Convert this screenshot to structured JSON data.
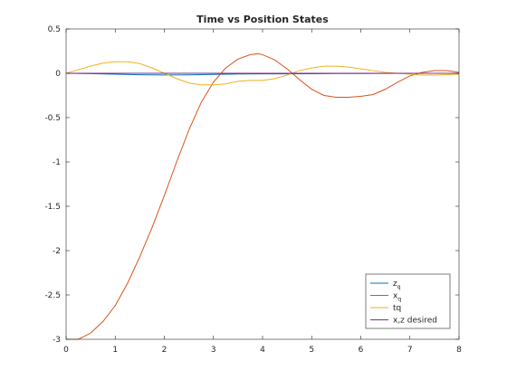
{
  "chart_data": {
    "type": "line",
    "title": "Time vs Position States",
    "xlabel": "",
    "ylabel": "",
    "xlim": [
      0,
      8
    ],
    "ylim": [
      -3,
      0.5
    ],
    "xticks": [
      0,
      1,
      2,
      3,
      4,
      5,
      6,
      7,
      8
    ],
    "xtick_labels": [
      "0",
      "1",
      "2",
      "3",
      "4",
      "5",
      "6",
      "7",
      "8"
    ],
    "yticks": [
      -3,
      -2.5,
      -2,
      -1.5,
      -1,
      -0.5,
      0,
      0.5
    ],
    "ytick_labels": [
      "-3",
      "-2.5",
      "-2",
      "-1.5",
      "-1",
      "-0.5",
      "0",
      "0.5"
    ],
    "grid": false,
    "legend_position": "bottom-right",
    "series": [
      {
        "name": "z_q",
        "legend_text": "z",
        "legend_sub": "q",
        "color": "#0072BD",
        "x": [
          0,
          0.5,
          1,
          1.5,
          2,
          2.5,
          3,
          3.5,
          4,
          4.5,
          5,
          5.5,
          6,
          6.5,
          7,
          7.5,
          8
        ],
        "y": [
          0,
          -0.004,
          -0.01,
          -0.016,
          -0.019,
          -0.018,
          -0.013,
          -0.008,
          -0.006,
          -0.006,
          -0.005,
          -0.003,
          -0.002,
          -0.001,
          0,
          0,
          0
        ]
      },
      {
        "name": "x_q",
        "legend_text": "x",
        "legend_sub": "q",
        "color": "#D95319",
        "x": [
          0,
          0.25,
          0.5,
          0.75,
          1,
          1.25,
          1.5,
          1.75,
          2,
          2.25,
          2.5,
          2.75,
          3,
          3.25,
          3.5,
          3.75,
          3.9,
          4,
          4.25,
          4.5,
          4.75,
          5,
          5.25,
          5.5,
          5.75,
          6,
          6.25,
          6.5,
          6.75,
          7,
          7.25,
          7.5,
          7.75,
          8
        ],
        "y": [
          -3,
          -3,
          -2.93,
          -2.8,
          -2.62,
          -2.37,
          -2.07,
          -1.74,
          -1.38,
          -1.0,
          -0.64,
          -0.33,
          -0.1,
          0.06,
          0.16,
          0.21,
          0.22,
          0.21,
          0.15,
          0.05,
          -0.07,
          -0.18,
          -0.25,
          -0.27,
          -0.27,
          -0.26,
          -0.24,
          -0.18,
          -0.1,
          -0.03,
          0.01,
          0.03,
          0.03,
          0.01
        ]
      },
      {
        "name": "tq",
        "legend_text": "tq",
        "legend_sub": "",
        "color": "#EDB120",
        "x": [
          0,
          0.25,
          0.5,
          0.75,
          1,
          1.25,
          1.5,
          1.75,
          2,
          2.25,
          2.5,
          2.75,
          3,
          3.25,
          3.5,
          3.75,
          4,
          4.25,
          4.5,
          4.75,
          5,
          5.25,
          5.5,
          5.75,
          6,
          6.25,
          6.5,
          6.75,
          7,
          7.25,
          7.5,
          7.75,
          8
        ],
        "y": [
          0,
          0.04,
          0.08,
          0.115,
          0.13,
          0.13,
          0.11,
          0.06,
          0.0,
          -0.06,
          -0.11,
          -0.13,
          -0.13,
          -0.12,
          -0.09,
          -0.08,
          -0.08,
          -0.06,
          -0.02,
          0.03,
          0.06,
          0.08,
          0.08,
          0.07,
          0.05,
          0.03,
          0.01,
          0,
          -0.01,
          -0.02,
          -0.02,
          -0.015,
          -0.01
        ]
      },
      {
        "name": "x,z desired",
        "legend_text": "x,z desired",
        "legend_sub": "",
        "color": "#7E2F8E",
        "x": [
          0,
          8
        ],
        "y": [
          0,
          0
        ]
      }
    ]
  }
}
